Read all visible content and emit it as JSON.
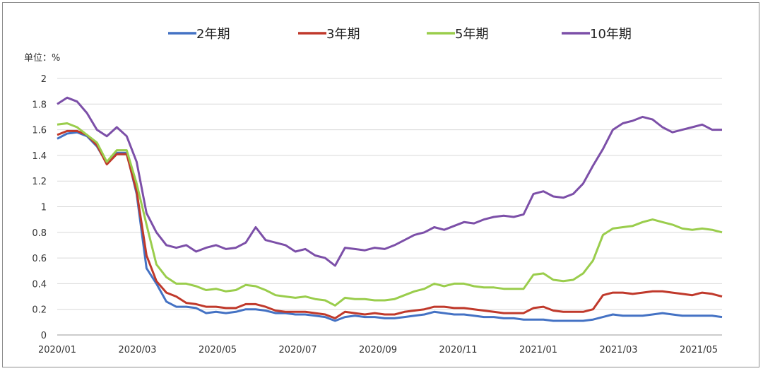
{
  "chart_data": {
    "type": "line",
    "unit_label": "单位：%",
    "ylim": [
      0,
      2
    ],
    "ytick_labels": [
      "0",
      "0.2",
      "0.4",
      "0.6",
      "0.8",
      "1",
      "1.2",
      "1.4",
      "1.6",
      "1.8",
      "2"
    ],
    "xtick_labels": [
      "2020/01",
      "2020/03",
      "2020/05",
      "2020/07",
      "2020/09",
      "2020/11",
      "2021/01",
      "2021/03",
      "2021/05"
    ],
    "grid": true,
    "legend_position": "top",
    "x": [
      "2020/01",
      "2020/01",
      "2020/01",
      "2020/01",
      "2020/02",
      "2020/02",
      "2020/02",
      "2020/02",
      "2020/03",
      "2020/03",
      "2020/03",
      "2020/03",
      "2020/04",
      "2020/04",
      "2020/04",
      "2020/04",
      "2020/05",
      "2020/05",
      "2020/05",
      "2020/05",
      "2020/06",
      "2020/06",
      "2020/06",
      "2020/06",
      "2020/07",
      "2020/07",
      "2020/07",
      "2020/07",
      "2020/08",
      "2020/08",
      "2020/08",
      "2020/08",
      "2020/09",
      "2020/09",
      "2020/09",
      "2020/09",
      "2020/10",
      "2020/10",
      "2020/10",
      "2020/10",
      "2020/11",
      "2020/11",
      "2020/11",
      "2020/11",
      "2020/12",
      "2020/12",
      "2020/12",
      "2020/12",
      "2021/01",
      "2021/01",
      "2021/01",
      "2021/01",
      "2021/02",
      "2021/02",
      "2021/02",
      "2021/02",
      "2021/03",
      "2021/03",
      "2021/03",
      "2021/03",
      "2021/04",
      "2021/04",
      "2021/04",
      "2021/04",
      "2021/05",
      "2021/05",
      "2021/05",
      "2021/05"
    ],
    "series": [
      {
        "name": "2年期",
        "color": "#4472c4",
        "values": [
          1.53,
          1.57,
          1.58,
          1.55,
          1.47,
          1.34,
          1.42,
          1.42,
          1.1,
          0.52,
          0.4,
          0.26,
          0.22,
          0.22,
          0.21,
          0.17,
          0.18,
          0.17,
          0.18,
          0.2,
          0.2,
          0.19,
          0.17,
          0.17,
          0.16,
          0.16,
          0.15,
          0.14,
          0.11,
          0.14,
          0.15,
          0.14,
          0.14,
          0.13,
          0.13,
          0.14,
          0.15,
          0.16,
          0.18,
          0.17,
          0.16,
          0.16,
          0.15,
          0.14,
          0.14,
          0.13,
          0.13,
          0.12,
          0.12,
          0.12,
          0.11,
          0.11,
          0.11,
          0.11,
          0.12,
          0.14,
          0.16,
          0.15,
          0.15,
          0.15,
          0.16,
          0.17,
          0.16,
          0.15,
          0.15,
          0.15,
          0.15,
          0.14
        ]
      },
      {
        "name": "3年期",
        "color": "#c0392b",
        "values": [
          1.56,
          1.59,
          1.59,
          1.56,
          1.48,
          1.33,
          1.41,
          1.41,
          1.12,
          0.62,
          0.42,
          0.33,
          0.3,
          0.25,
          0.24,
          0.22,
          0.22,
          0.21,
          0.21,
          0.24,
          0.24,
          0.22,
          0.19,
          0.18,
          0.18,
          0.18,
          0.17,
          0.16,
          0.13,
          0.18,
          0.17,
          0.16,
          0.17,
          0.16,
          0.16,
          0.18,
          0.19,
          0.2,
          0.22,
          0.22,
          0.21,
          0.21,
          0.2,
          0.19,
          0.18,
          0.17,
          0.17,
          0.17,
          0.21,
          0.22,
          0.19,
          0.18,
          0.18,
          0.18,
          0.2,
          0.31,
          0.33,
          0.33,
          0.32,
          0.33,
          0.34,
          0.34,
          0.33,
          0.32,
          0.31,
          0.33,
          0.32,
          0.3
        ]
      },
      {
        "name": "5年期",
        "color": "#9acd4c",
        "values": [
          1.64,
          1.65,
          1.62,
          1.56,
          1.5,
          1.35,
          1.44,
          1.44,
          1.18,
          0.86,
          0.55,
          0.45,
          0.4,
          0.4,
          0.38,
          0.35,
          0.36,
          0.34,
          0.35,
          0.39,
          0.38,
          0.35,
          0.31,
          0.3,
          0.29,
          0.3,
          0.28,
          0.27,
          0.23,
          0.29,
          0.28,
          0.28,
          0.27,
          0.27,
          0.28,
          0.31,
          0.34,
          0.36,
          0.4,
          0.38,
          0.4,
          0.4,
          0.38,
          0.37,
          0.37,
          0.36,
          0.36,
          0.36,
          0.47,
          0.48,
          0.43,
          0.42,
          0.43,
          0.48,
          0.58,
          0.78,
          0.83,
          0.84,
          0.85,
          0.88,
          0.9,
          0.88,
          0.86,
          0.83,
          0.82,
          0.83,
          0.82,
          0.8
        ]
      },
      {
        "name": "10年期",
        "color": "#7c4fa8",
        "values": [
          1.8,
          1.85,
          1.82,
          1.73,
          1.6,
          1.55,
          1.62,
          1.55,
          1.35,
          0.95,
          0.8,
          0.7,
          0.68,
          0.7,
          0.65,
          0.68,
          0.7,
          0.67,
          0.68,
          0.72,
          0.84,
          0.74,
          0.72,
          0.7,
          0.65,
          0.67,
          0.62,
          0.6,
          0.54,
          0.68,
          0.67,
          0.66,
          0.68,
          0.67,
          0.7,
          0.74,
          0.78,
          0.8,
          0.84,
          0.82,
          0.85,
          0.88,
          0.87,
          0.9,
          0.92,
          0.93,
          0.92,
          0.94,
          1.1,
          1.12,
          1.08,
          1.07,
          1.1,
          1.18,
          1.32,
          1.45,
          1.6,
          1.65,
          1.67,
          1.7,
          1.68,
          1.62,
          1.58,
          1.6,
          1.62,
          1.64,
          1.6,
          1.6
        ]
      }
    ]
  }
}
